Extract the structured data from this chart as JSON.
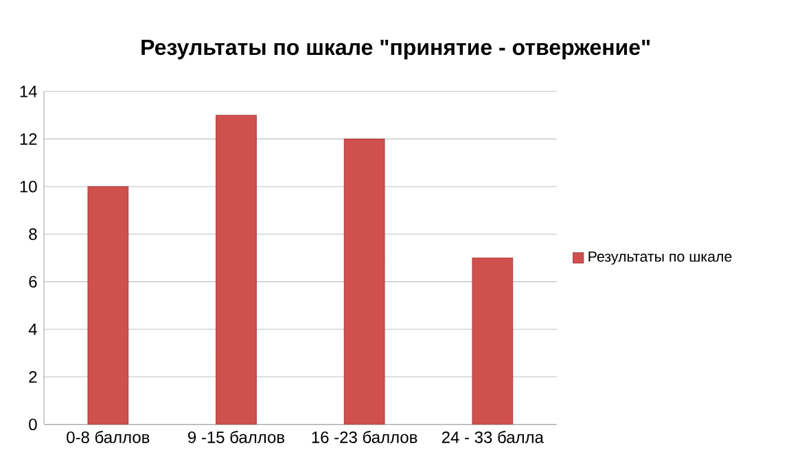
{
  "chart_data": {
    "type": "bar",
    "title": "Результаты по шкале \"принятие - отвержение\"",
    "categories": [
      "0-8 баллов",
      "9 -15 баллов",
      "16 -23 баллов",
      "24 - 33 балла"
    ],
    "series": [
      {
        "name": "Результаты по шкале",
        "color": "#d0504e",
        "values": [
          10,
          13,
          12,
          7
        ]
      }
    ],
    "ylim": [
      0,
      14
    ],
    "yticks": [
      0,
      2,
      4,
      6,
      8,
      10,
      12,
      14
    ],
    "grid": "y",
    "legend": "right"
  }
}
